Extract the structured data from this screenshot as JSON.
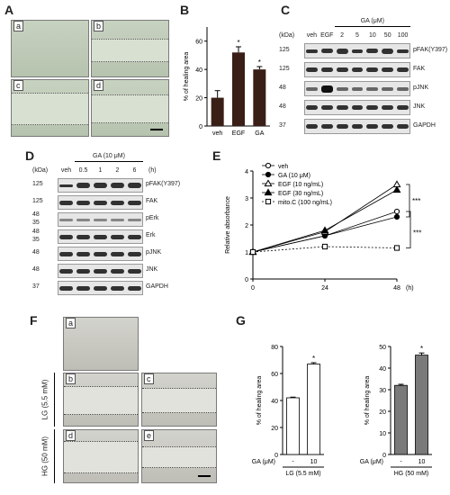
{
  "panel_labels": {
    "A": "A",
    "B": "B",
    "C": "C",
    "D": "D",
    "E": "E",
    "F": "F",
    "G": "G"
  },
  "panelA": {
    "images": [
      "a",
      "b",
      "c",
      "d"
    ]
  },
  "chart_data": [
    {
      "type": "bar",
      "id": "B",
      "ylabel": "% of healing area",
      "categories": [
        "veh",
        "EGF",
        "GA"
      ],
      "values": [
        20,
        52,
        40
      ],
      "errors": [
        5,
        4,
        2
      ],
      "significance": [
        "",
        "*",
        "*"
      ],
      "ylim": [
        0,
        70
      ],
      "yticks": [
        0,
        20,
        40,
        60
      ],
      "bar_color": "#3a1f17"
    },
    {
      "type": "line",
      "id": "E",
      "xlabel": "(h)",
      "ylabel": "Relative absorbance",
      "x": [
        0,
        24,
        48
      ],
      "ylim": [
        0,
        4
      ],
      "yticks": [
        0,
        1,
        2,
        3,
        4
      ],
      "series": [
        {
          "name": "veh",
          "values": [
            1,
            1.6,
            2.5
          ],
          "marker": "open-circle",
          "line": "solid"
        },
        {
          "name": "GA (10 μM)",
          "values": [
            1,
            1.6,
            2.3
          ],
          "marker": "filled-circle",
          "line": "solid"
        },
        {
          "name": "EGF (10 ng/mL)",
          "values": [
            1,
            1.75,
            3.5
          ],
          "marker": "open-triangle",
          "line": "solid"
        },
        {
          "name": "EGF (30 ng/mL)",
          "values": [
            1,
            1.8,
            3.3
          ],
          "marker": "filled-triangle",
          "line": "solid"
        },
        {
          "name": "mito.C (100 ng/mL)",
          "values": [
            1,
            1.2,
            1.15
          ],
          "marker": "open-square",
          "line": "dashed"
        }
      ],
      "significance": [
        "***",
        "***"
      ]
    },
    {
      "type": "bar",
      "id": "G-left",
      "ylabel": "% of healing area",
      "categories": [
        "-",
        "10"
      ],
      "values": [
        42,
        67
      ],
      "errors": [
        0.5,
        1
      ],
      "significance": [
        "",
        "*"
      ],
      "ylim": [
        0,
        80
      ],
      "yticks": [
        0,
        20,
        40,
        60,
        80
      ],
      "bar_color": "#ffffff",
      "xlabel": "LG (5.5 mM)"
    },
    {
      "type": "bar",
      "id": "G-right",
      "ylabel": "% of healing area",
      "categories": [
        "-",
        "10"
      ],
      "values": [
        32,
        46
      ],
      "errors": [
        0.5,
        1
      ],
      "significance": [
        "",
        "*"
      ],
      "ylim": [
        0,
        50
      ],
      "yticks": [
        0,
        10,
        20,
        30,
        40,
        50
      ],
      "bar_color": "#7a7a7a",
      "xlabel": "HG (50 mM)"
    }
  ],
  "panelC": {
    "header": "GA (μM)",
    "kda_label": "(kDa)",
    "lanes": [
      "veh",
      "EGF",
      "2",
      "5",
      "10",
      "50",
      "100"
    ],
    "rows": [
      {
        "kda": "125",
        "label": "pFAK(Y397)"
      },
      {
        "kda": "125",
        "label": "FAK"
      },
      {
        "kda": "48",
        "label": "pJNK"
      },
      {
        "kda": "48",
        "label": "JNK"
      },
      {
        "kda": "37",
        "label": "GAPDH"
      }
    ]
  },
  "panelD": {
    "header": "GA (10 μM)",
    "kda_label": "(kDa)",
    "time_unit": "(h)",
    "lanes": [
      "veh",
      "0.5",
      "1",
      "2",
      "6"
    ],
    "rows": [
      {
        "kda": "125",
        "label": "pFAK(Y397)"
      },
      {
        "kda": "125",
        "label": "FAK"
      },
      {
        "kda": "48",
        "kda2": "35",
        "label": "pErk"
      },
      {
        "kda": "48",
        "kda2": "35",
        "label": "Erk"
      },
      {
        "kda": "48",
        "label": "pJNK"
      },
      {
        "kda": "48",
        "label": "JNK"
      },
      {
        "kda": "37",
        "label": "GAPDH"
      }
    ]
  },
  "panelF": {
    "side_labels": [
      "LG (5.5 mM)",
      "HG (50 mM)"
    ],
    "images": [
      "a",
      "b",
      "c",
      "d",
      "e"
    ]
  },
  "panelG": {
    "ga_label": "GA (μM)"
  }
}
